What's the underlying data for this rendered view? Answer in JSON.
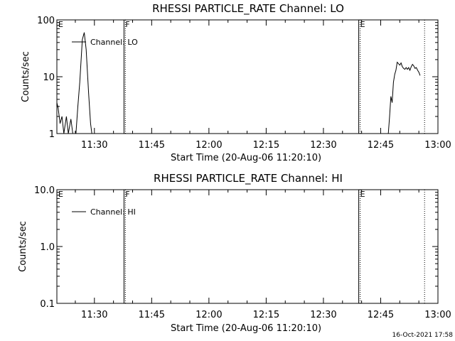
{
  "chart_data": [
    {
      "type": "line",
      "title": "RHESSI PARTICLE_RATE Channel: LO",
      "xlabel": "Start Time (20-Aug-06 11:20:10)",
      "ylabel": "Counts/sec",
      "yscale": "log",
      "ylim": [
        1,
        100
      ],
      "yticks": [
        "1",
        "10",
        "100"
      ],
      "xticks": [
        "11:30",
        "11:45",
        "12:00",
        "12:15",
        "12:30",
        "12:45",
        "13:00"
      ],
      "xlim": [
        "11:20:10",
        "13:00:00"
      ],
      "legend": "upper-left",
      "grid": false,
      "series": [
        {
          "name": "Channel: LO",
          "points": [
            [
              "11:20:10",
              3.5
            ],
            [
              "11:20:30",
              2.8
            ],
            [
              "11:21:00",
              1.5
            ],
            [
              "11:21:30",
              2.0
            ],
            [
              "11:22:00",
              1.0
            ],
            [
              "11:22:40",
              2.0
            ],
            [
              "11:23:10",
              1.0
            ],
            [
              "11:23:50",
              1.8
            ],
            [
              "11:24:20",
              1.0
            ],
            [
              "11:24:50",
              0.5
            ],
            [
              "11:25:10",
              1.0
            ],
            [
              "11:25:40",
              3.0
            ],
            [
              "11:26:10",
              8.0
            ],
            [
              "11:26:50",
              45.0
            ],
            [
              "11:27:20",
              60.0
            ],
            [
              "11:27:50",
              30.0
            ],
            [
              "11:28:30",
              5.0
            ],
            [
              "11:29:00",
              1.5
            ],
            [
              "11:29:20",
              1.0
            ],
            null,
            [
              "12:47:00",
              1.0
            ],
            [
              "12:47:20",
              2.0
            ],
            [
              "12:47:40",
              4.5
            ],
            [
              "12:48:00",
              3.5
            ],
            [
              "12:48:20",
              8.0
            ],
            [
              "12:48:40",
              11.0
            ],
            [
              "12:49:00",
              13.0
            ],
            [
              "12:49:20",
              18.0
            ],
            [
              "12:49:40",
              17.0
            ],
            [
              "12:50:00",
              16.0
            ],
            [
              "12:50:20",
              17.5
            ],
            [
              "12:50:40",
              15.0
            ],
            [
              "12:51:00",
              14.0
            ],
            [
              "12:51:20",
              13.5
            ],
            [
              "12:51:40",
              14.5
            ],
            [
              "12:52:00",
              13.5
            ],
            [
              "12:52:20",
              14.5
            ],
            [
              "12:52:40",
              13.0
            ],
            [
              "12:53:00",
              15.0
            ],
            [
              "12:53:20",
              16.5
            ],
            [
              "12:53:40",
              15.5
            ],
            [
              "12:54:00",
              14.0
            ],
            [
              "12:54:20",
              14.5
            ],
            [
              "12:54:40",
              13.0
            ],
            [
              "12:55:00",
              12.0
            ],
            [
              "12:55:20",
              10.5
            ]
          ]
        }
      ],
      "markers": [
        {
          "label": "E",
          "time": "11:20:10",
          "style": "none"
        },
        {
          "label": "F",
          "time": "11:37:45",
          "style": "solid"
        },
        {
          "label": "E",
          "time": "12:39:15",
          "style": "solid"
        },
        {
          "label": "",
          "time": "12:56:30",
          "style": "dotted"
        }
      ]
    },
    {
      "type": "line",
      "title": "RHESSI PARTICLE_RATE Channel: HI",
      "xlabel": "Start Time (20-Aug-06 11:20:10)",
      "ylabel": "Counts/sec",
      "yscale": "log",
      "ylim": [
        0.1,
        10
      ],
      "yticks": [
        "0.1",
        "1.0",
        "10.0"
      ],
      "xticks": [
        "11:30",
        "11:45",
        "12:00",
        "12:15",
        "12:30",
        "12:45",
        "13:00"
      ],
      "xlim": [
        "11:20:10",
        "13:00:00"
      ],
      "legend": "upper-left",
      "grid": false,
      "series": [
        {
          "name": "Channel: HI",
          "points": []
        }
      ],
      "markers": [
        {
          "label": "E",
          "time": "11:20:10",
          "style": "none"
        },
        {
          "label": "F",
          "time": "11:37:45",
          "style": "solid"
        },
        {
          "label": "E",
          "time": "12:39:15",
          "style": "solid"
        },
        {
          "label": "",
          "time": "12:56:30",
          "style": "dotted"
        }
      ]
    }
  ],
  "footer": {
    "stamp": "16-Oct-2021 17:58"
  }
}
